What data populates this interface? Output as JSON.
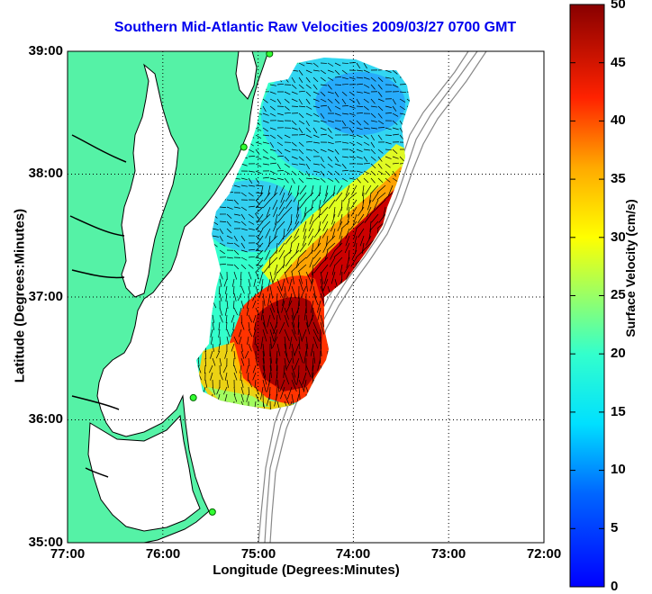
{
  "title": "Southern Mid-Atlantic Raw Velocities 2009/03/27 0700 GMT",
  "map": {
    "xlabel": "Longitude (Degrees:Minutes)",
    "ylabel": "Latitude (Degrees:Minutes)",
    "x_ticks": [
      "77:00",
      "76:00",
      "75:00",
      "74:00",
      "73:00",
      "72:00"
    ],
    "y_ticks": [
      "39:00",
      "38:00",
      "37:00",
      "36:00",
      "35:00"
    ],
    "lon_range": [
      -77,
      -72
    ],
    "lat_range": [
      35,
      39
    ],
    "grid": true,
    "land_color": "#55f2a6",
    "water_color": "#ffffff",
    "isobath_color": "#888888",
    "stations": [
      {
        "lon": -74.88,
        "lat": 38.98
      },
      {
        "lon": -75.15,
        "lat": 38.22
      },
      {
        "lon": -75.68,
        "lat": 36.18
      },
      {
        "lon": -75.48,
        "lat": 35.25
      }
    ]
  },
  "colorbar": {
    "label": "Surface Velocity (cm/s)",
    "ticks": [
      "0",
      "5",
      "10",
      "15",
      "20",
      "25",
      "30",
      "35",
      "40",
      "45",
      "50"
    ],
    "range": [
      0,
      50
    ],
    "colormap": "jet"
  }
}
